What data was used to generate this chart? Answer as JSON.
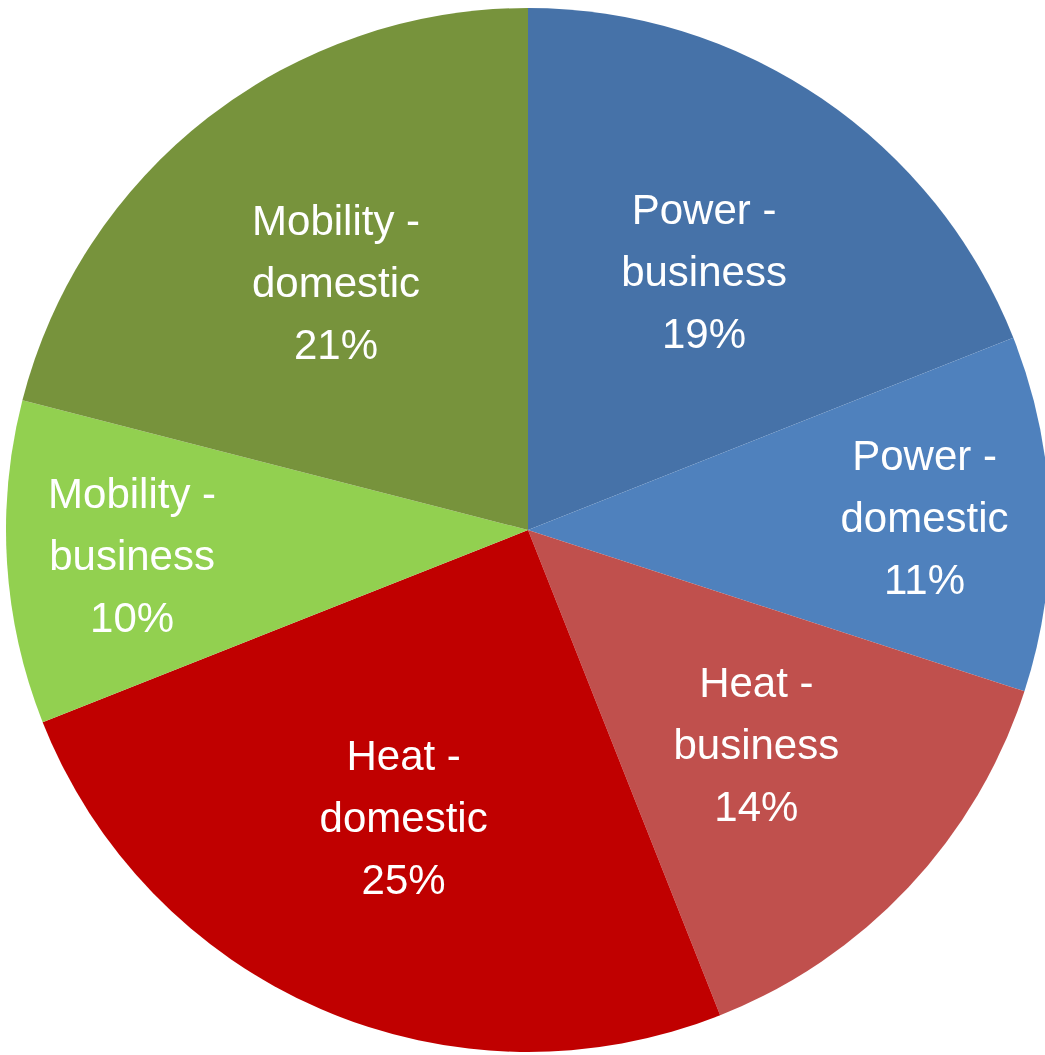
{
  "chart_data": {
    "type": "pie",
    "categories": [
      "Power - business",
      "Power - domestic",
      "Heat - business",
      "Heat - domestic",
      "Mobility - business",
      "Mobility - domestic"
    ],
    "values": [
      19,
      11,
      14,
      25,
      10,
      21
    ],
    "colors": [
      "#4672a8",
      "#4f81bd",
      "#c0504d",
      "#c00000",
      "#92d050",
      "#77933c"
    ],
    "value_labels": [
      "19%",
      "11%",
      "14%",
      "25%",
      "10%",
      "21%"
    ]
  }
}
